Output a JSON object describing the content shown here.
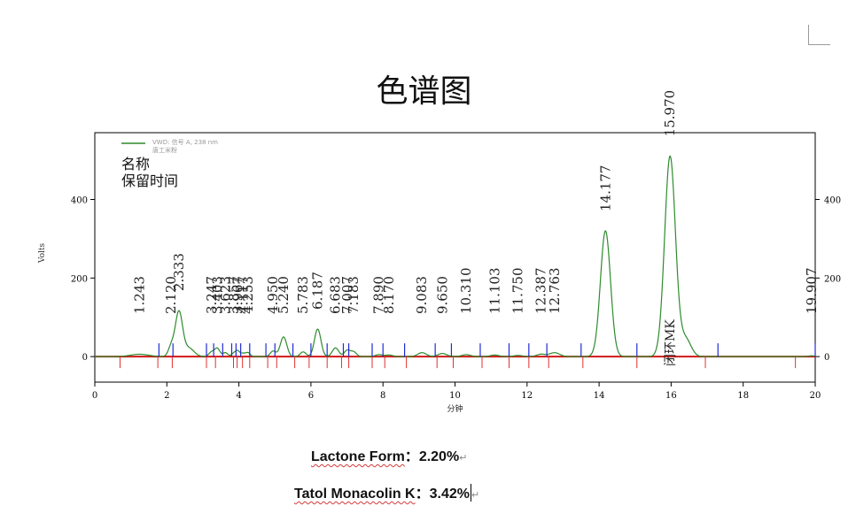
{
  "page": {
    "title": "色谱图",
    "captions": [
      {
        "label": "Lactone Form",
        "sep": "：",
        "value": "2.20%",
        "mark": "↵"
      },
      {
        "label": "Tatol Monacolin  K",
        "sep": "：",
        "value": "3.42%",
        "mark": "↵"
      }
    ]
  },
  "chart_data": {
    "type": "line",
    "xlabel": "分钟",
    "ylabel": "Volts",
    "xlim": [
      0,
      20
    ],
    "ylim": [
      -65,
      570
    ],
    "x_ticks": [
      0,
      2,
      4,
      6,
      8,
      10,
      12,
      14,
      16,
      18,
      20
    ],
    "y_ticks": [
      0,
      200,
      400
    ],
    "legend": {
      "name": "VWD: 信号 A, 238 nm",
      "sample": "唐工米粉",
      "color": "#2e8b2e",
      "placement": "top-left"
    },
    "annotation_header": [
      "名称",
      "保留时间"
    ],
    "series": [
      {
        "name": "VWD: 信号 A, 238 nm",
        "color": "#2e8b2e",
        "peaks": [
          {
            "rt": 1.243,
            "height": 6,
            "width": 0.25
          },
          {
            "rt": 2.12,
            "height": 25,
            "width": 0.08
          },
          {
            "rt": 2.333,
            "height": 112,
            "width": 0.1
          },
          {
            "rt": 2.6,
            "height": 22,
            "width": 0.15
          },
          {
            "rt": 3.247,
            "height": 12,
            "width": 0.08
          },
          {
            "rt": 3.403,
            "height": 20,
            "width": 0.07
          },
          {
            "rt": 3.623,
            "height": 10,
            "width": 0.07
          },
          {
            "rt": 3.857,
            "height": 8,
            "width": 0.06
          },
          {
            "rt": 3.967,
            "height": 14,
            "width": 0.06
          },
          {
            "rt": 4.117,
            "height": 8,
            "width": 0.06
          },
          {
            "rt": 4.253,
            "height": 10,
            "width": 0.06
          },
          {
            "rt": 4.95,
            "height": 14,
            "width": 0.08
          },
          {
            "rt": 5.24,
            "height": 50,
            "width": 0.09
          },
          {
            "rt": 5.783,
            "height": 12,
            "width": 0.08
          },
          {
            "rt": 6.187,
            "height": 70,
            "width": 0.09
          },
          {
            "rt": 6.683,
            "height": 22,
            "width": 0.09
          },
          {
            "rt": 7.007,
            "height": 16,
            "width": 0.08
          },
          {
            "rt": 7.183,
            "height": 12,
            "width": 0.08
          },
          {
            "rt": 7.89,
            "height": 5,
            "width": 0.1
          },
          {
            "rt": 8.17,
            "height": 4,
            "width": 0.1
          },
          {
            "rt": 9.083,
            "height": 10,
            "width": 0.12
          },
          {
            "rt": 9.65,
            "height": 8,
            "width": 0.12
          },
          {
            "rt": 10.31,
            "height": 5,
            "width": 0.12
          },
          {
            "rt": 11.103,
            "height": 4,
            "width": 0.12
          },
          {
            "rt": 11.75,
            "height": 3,
            "width": 0.12
          },
          {
            "rt": 12.387,
            "height": 6,
            "width": 0.12
          },
          {
            "rt": 12.763,
            "height": 10,
            "width": 0.14
          },
          {
            "rt": 14.177,
            "height": 320,
            "width": 0.14
          },
          {
            "rt": 15.97,
            "height": 510,
            "width": 0.15
          },
          {
            "rt": 16.4,
            "height": 45,
            "width": 0.15
          },
          {
            "rt": 19.907,
            "height": 2,
            "width": 0.1
          }
        ]
      }
    ],
    "peak_labels": [
      {
        "x": 1.243,
        "text": "1.243"
      },
      {
        "x": 2.12,
        "text": "2.120"
      },
      {
        "x": 2.333,
        "text": "2.333"
      },
      {
        "x": 3.247,
        "text": "3.247"
      },
      {
        "x": 3.403,
        "text": "3.403"
      },
      {
        "x": 3.623,
        "text": "3.623"
      },
      {
        "x": 3.857,
        "text": "3.857"
      },
      {
        "x": 3.967,
        "text": "3.967"
      },
      {
        "x": 4.117,
        "text": "4.117"
      },
      {
        "x": 4.253,
        "text": "4.253"
      },
      {
        "x": 4.95,
        "text": "4.950"
      },
      {
        "x": 5.24,
        "text": "5.240"
      },
      {
        "x": 5.783,
        "text": "5.783"
      },
      {
        "x": 6.187,
        "text": "6.187"
      },
      {
        "x": 6.683,
        "text": "6.683"
      },
      {
        "x": 7.007,
        "text": "7.007"
      },
      {
        "x": 7.183,
        "text": "7.183"
      },
      {
        "x": 7.89,
        "text": "7.890"
      },
      {
        "x": 8.17,
        "text": "8.170"
      },
      {
        "x": 9.083,
        "text": "9.083"
      },
      {
        "x": 9.65,
        "text": "9.650"
      },
      {
        "x": 10.31,
        "text": "10.310"
      },
      {
        "x": 11.103,
        "text": "11.103"
      },
      {
        "x": 11.75,
        "text": "11.750"
      },
      {
        "x": 12.387,
        "text": "12.387"
      },
      {
        "x": 12.763,
        "text": "12.763"
      },
      {
        "x": 14.177,
        "text": "14.177"
      },
      {
        "x": 15.97,
        "text": "15.970"
      },
      {
        "x": 19.907,
        "text": "19.907"
      }
    ],
    "named_peak": {
      "x": 15.97,
      "name": "闭环MK"
    },
    "blue_markers": [
      1.78,
      2.17,
      3.1,
      3.3,
      3.55,
      3.8,
      3.92,
      4.05,
      4.3,
      4.75,
      5.0,
      5.5,
      6.0,
      6.45,
      6.9,
      7.05,
      7.7,
      8.0,
      8.6,
      9.45,
      9.9,
      10.7,
      11.5,
      12.05,
      12.55,
      13.5,
      15.05,
      17.3,
      20.0
    ],
    "red_markers": [
      0.7,
      1.75,
      2.15,
      3.1,
      3.35,
      3.85,
      3.95,
      4.1,
      4.3,
      4.8,
      5.05,
      5.55,
      5.95,
      6.45,
      6.85,
      7.05,
      7.7,
      8.05,
      8.65,
      9.5,
      9.95,
      10.75,
      11.5,
      12.05,
      12.6,
      13.55,
      15.05,
      16.95,
      19.45
    ]
  }
}
